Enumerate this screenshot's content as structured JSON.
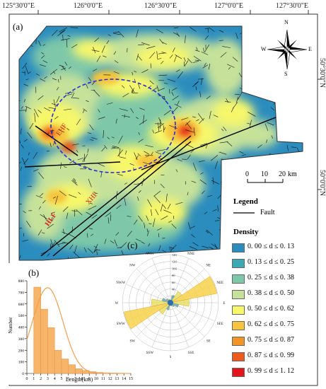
{
  "top_coords": [
    "125°30'0\"E",
    "126°0'0\"E",
    "126°30'0\"E",
    "127°0'0\"E",
    "127°30'0\"E"
  ],
  "right_coords": [
    "50°30'0\"N",
    "50°0'0\"N"
  ],
  "panels": {
    "a": "(a)",
    "b": "(b)",
    "c": "(c)"
  },
  "compass": {
    "n": "N",
    "s": "S",
    "e": "E",
    "w": "W"
  },
  "scale": {
    "labels": [
      "0",
      "10",
      "20"
    ],
    "unit": "km"
  },
  "legend": {
    "title": "Legend",
    "fault_label": "Fault",
    "density_title": "Density"
  },
  "density_classes": [
    {
      "label": "0. 00 ≤ d ≤ 0. 13",
      "color": "#2b8cbe"
    },
    {
      "label": "0. 13 ≤ d ≤ 0. 25",
      "color": "#3aa9b3"
    },
    {
      "label": "0. 25 ≤ d ≤ 0. 38",
      "color": "#7ec8a9"
    },
    {
      "label": "0. 38 ≤ d ≤ 0. 50",
      "color": "#c6e29a"
    },
    {
      "label": "0. 50 ≤ d ≤ 0. 62",
      "color": "#f7f76b"
    },
    {
      "label": "0. 62 ≤ d ≤ 0. 75",
      "color": "#f6c53e"
    },
    {
      "label": "0. 75 ≤ d ≤ 0. 87",
      "color": "#f39427"
    },
    {
      "label": "0. 87 ≤ d ≤ 0. 99",
      "color": "#ee5a1d"
    },
    {
      "label": "0. 99 ≤ d ≤ 1. 12",
      "color": "#e3141b"
    }
  ],
  "fault_labels": [
    "EHF",
    "XHF",
    "HLF"
  ],
  "chart_data": [
    {
      "type": "bar",
      "ylabel": "Number",
      "xlabel": "Length(km)",
      "ylim": [
        0,
        800
      ],
      "yticks": [
        0,
        100,
        200,
        300,
        400,
        500,
        600,
        700,
        800
      ],
      "xticks": [
        0,
        1,
        2,
        3,
        4,
        5,
        6,
        7,
        8,
        9,
        10,
        11,
        12,
        13,
        14,
        15
      ],
      "bins": [
        [
          1,
          2
        ],
        [
          2,
          3
        ],
        [
          3,
          4
        ],
        [
          4,
          5
        ],
        [
          5,
          6
        ],
        [
          6,
          7
        ],
        [
          7,
          8
        ],
        [
          8,
          9
        ],
        [
          9,
          10
        ],
        [
          10,
          11
        ],
        [
          11,
          12
        ],
        [
          12,
          13
        ],
        [
          13,
          14
        ],
        [
          14,
          15
        ]
      ],
      "values": [
        745,
        555,
        395,
        200,
        125,
        75,
        40,
        25,
        15,
        8,
        5,
        3,
        2,
        1
      ],
      "fit_curve": "normal",
      "fit_peak": [
        3,
        740
      ]
    },
    {
      "type": "rose",
      "direction_labels": [
        "N",
        "NNE",
        "NE",
        "NEE",
        "E",
        "SEE",
        "SE",
        "SSE",
        "S",
        "SSW",
        "SW",
        "SWW",
        "W",
        "NWW",
        "NW",
        "NNW"
      ],
      "radial_ticks": [
        0,
        20,
        40,
        60,
        80,
        100,
        120,
        140
      ],
      "values": [
        8,
        22,
        40,
        138,
        55,
        25,
        15,
        10,
        8,
        22,
        40,
        138,
        55,
        25,
        15,
        10
      ]
    }
  ]
}
